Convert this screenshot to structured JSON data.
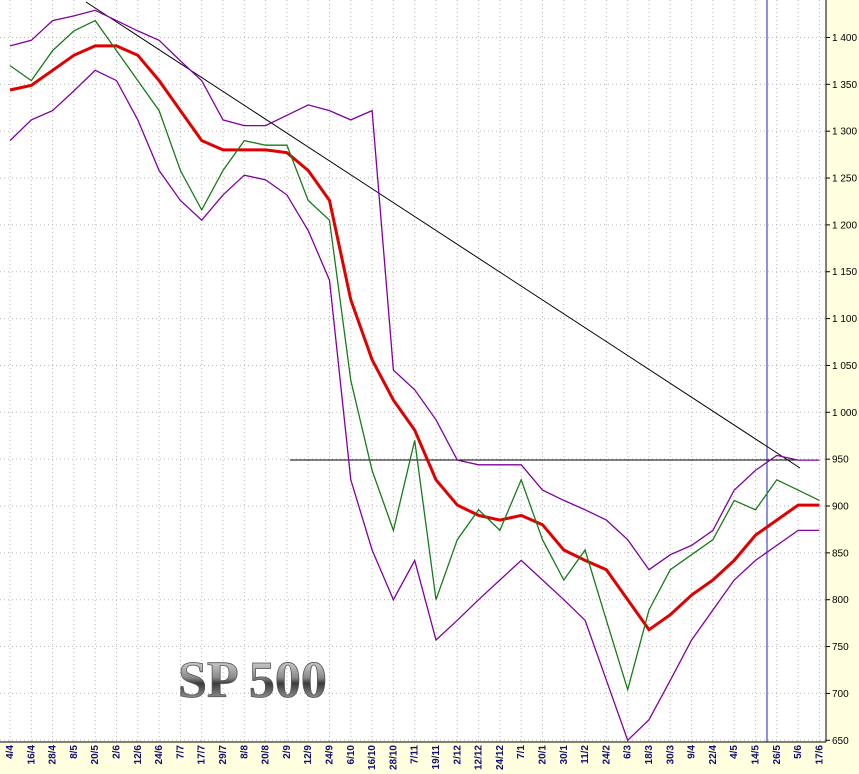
{
  "chart_data": {
    "type": "line",
    "title": "SP 500",
    "categories": [
      "4/4",
      "16/4",
      "28/4",
      "8/5",
      "20/5",
      "2/6",
      "12/6",
      "24/6",
      "7/7",
      "17/7",
      "29/7",
      "8/8",
      "20/8",
      "2/9",
      "12/9",
      "24/9",
      "6/10",
      "16/10",
      "28/10",
      "7/11",
      "19/11",
      "2/12",
      "12/12",
      "24/12",
      "7/1",
      "20/1",
      "30/1",
      "11/2",
      "24/2",
      "6/3",
      "18/3",
      "30/3",
      "9/4",
      "22/4",
      "4/5",
      "14/5",
      "26/5",
      "5/6",
      "17/6"
    ],
    "series": [
      {
        "color": "#8000a0",
        "values": [
          1391,
          1397,
          1418,
          1423,
          1429,
          1418,
          1407,
          1397,
          1375,
          1354,
          1312,
          1306,
          1306,
          1317,
          1328,
          1322,
          1312,
          1322,
          1045,
          1024,
          992,
          949,
          944,
          944,
          944,
          917,
          906,
          896,
          885,
          864,
          832,
          848,
          858,
          874,
          917,
          938,
          954,
          949,
          949
        ]
      },
      {
        "color": "#8000a0",
        "values": [
          1290,
          1312,
          1322,
          1343,
          1365,
          1354,
          1312,
          1258,
          1226,
          1205,
          1232,
          1253,
          1248,
          1232,
          1194,
          1141,
          928,
          853,
          800,
          842,
          757,
          778,
          800,
          821,
          842,
          821,
          800,
          778,
          714,
          650,
          672,
          714,
          757,
          789,
          821,
          842,
          858,
          874,
          874
        ]
      },
      {
        "color": "#e00000",
        "values": [
          1344,
          1349,
          1365,
          1381,
          1391,
          1391,
          1381,
          1354,
          1322,
          1290,
          1280,
          1280,
          1280,
          1277,
          1258,
          1226,
          1120,
          1056,
          1013,
          981,
          928,
          901,
          890,
          885,
          890,
          880,
          853,
          842,
          832,
          800,
          768,
          784,
          805,
          821,
          842,
          869,
          885,
          901,
          901
        ]
      },
      {
        "color": "#1a7a1a",
        "values": [
          1370,
          1354,
          1386,
          1407,
          1418,
          1386,
          1354,
          1322,
          1258,
          1216,
          1258,
          1290,
          1285,
          1285,
          1226,
          1205,
          1034,
          938,
          874,
          970,
          800,
          864,
          896,
          874,
          928,
          864,
          821,
          853,
          778,
          704,
          789,
          832,
          848,
          864,
          906,
          896,
          928,
          917,
          906
        ]
      }
    ],
    "ylim": [
      614,
      1440
    ],
    "yticks": [
      650,
      700,
      750,
      800,
      850,
      900,
      950,
      {
        "value": 1000,
        "label": "1 000"
      },
      {
        "value": 1050,
        "label": "1 050"
      },
      {
        "value": 1100,
        "label": "1 100"
      },
      {
        "value": 1150,
        "label": "1 150"
      },
      {
        "value": 1200,
        "label": "1 200"
      },
      {
        "value": 1250,
        "label": "1 250"
      },
      {
        "value": 1300,
        "label": "1 300"
      },
      {
        "value": 1350,
        "label": "1 350"
      },
      {
        "value": 1400,
        "label": "1 400"
      }
    ],
    "grid": true
  }
}
